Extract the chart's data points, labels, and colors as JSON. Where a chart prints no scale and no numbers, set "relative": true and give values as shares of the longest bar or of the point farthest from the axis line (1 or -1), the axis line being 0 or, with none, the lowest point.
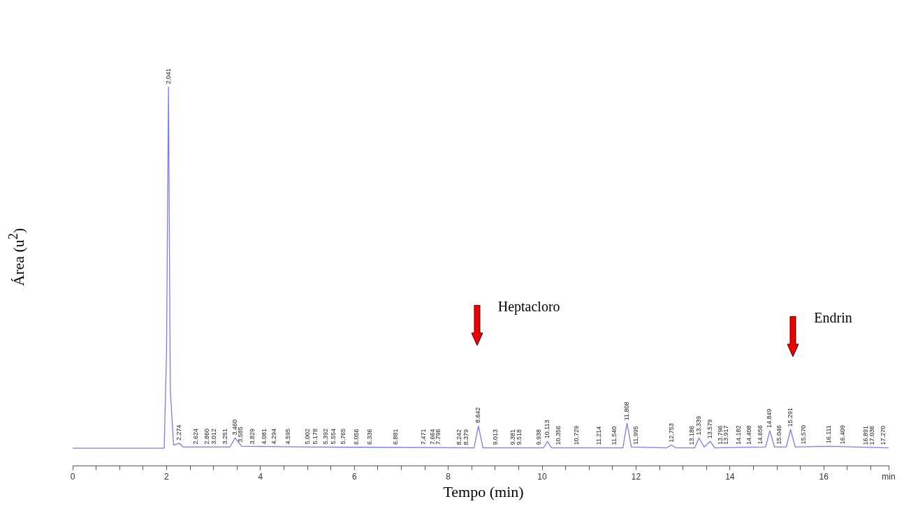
{
  "chart_data": {
    "type": "line",
    "relative": true,
    "xlabel": "Tempo (min)",
    "ylabel": "Área (u$^{2}$)",
    "xlim": [
      0,
      17.38
    ],
    "xticks": [
      0,
      {
        "value": 0.5,
        "label": null
      },
      {
        "value": 1,
        "label": null
      },
      {
        "value": 1.5,
        "label": null
      },
      2,
      {
        "value": 2.5,
        "label": null
      },
      {
        "value": 3,
        "label": null
      },
      {
        "value": 3.5,
        "label": null
      },
      4,
      {
        "value": 4.5,
        "label": null
      },
      {
        "value": 5,
        "label": null
      },
      {
        "value": 5.5,
        "label": null
      },
      6,
      {
        "value": 6.5,
        "label": null
      },
      {
        "value": 7,
        "label": null
      },
      {
        "value": 7.5,
        "label": null
      },
      8,
      {
        "value": 8.5,
        "label": null
      },
      {
        "value": 9,
        "label": null
      },
      {
        "value": 9.5,
        "label": null
      },
      10,
      {
        "value": 10.5,
        "label": null
      },
      {
        "value": 11,
        "label": null
      },
      {
        "value": 11.5,
        "label": null
      },
      12,
      {
        "value": 12.5,
        "label": null
      },
      {
        "value": 13,
        "label": null
      },
      {
        "value": 13.5,
        "label": null
      },
      14,
      {
        "value": 14.5,
        "label": null
      },
      {
        "value": 15,
        "label": null
      },
      {
        "value": 15.5,
        "label": null
      },
      16,
      {
        "value": 16.5,
        "label": null
      },
      {
        "value": 17,
        "label": null
      },
      {
        "value": 17.38,
        "label": "min"
      }
    ],
    "legend": false,
    "grid": false,
    "marker": "none",
    "series": [
      {
        "color": "#7b7bf0",
        "x": [
          0,
          1.95,
          2.0,
          2.041,
          2.08,
          2.15,
          2.274,
          2.35,
          3.35,
          3.46,
          3.6,
          5.0,
          8.55,
          8.642,
          8.74,
          10.03,
          10.113,
          10.2,
          11.72,
          11.808,
          11.9,
          12.65,
          12.753,
          12.85,
          13.25,
          13.339,
          13.45,
          13.579,
          13.68,
          14.76,
          14.849,
          14.95,
          15.2,
          15.291,
          15.39,
          16.111,
          17.38
        ],
        "values": [
          0.047,
          0.047,
          0.3,
          1.0,
          0.2,
          0.055,
          0.06,
          0.05,
          0.05,
          0.074,
          0.052,
          0.05,
          0.048,
          0.106,
          0.048,
          0.048,
          0.065,
          0.048,
          0.048,
          0.113,
          0.05,
          0.048,
          0.055,
          0.048,
          0.048,
          0.074,
          0.05,
          0.065,
          0.048,
          0.05,
          0.093,
          0.05,
          0.05,
          0.096,
          0.05,
          0.052,
          0.048
        ]
      }
    ],
    "annotations": [
      "Heptacloro",
      "Endrin",
      {
        "text": "2.041",
        "x": 2.041,
        "y": 1.0
      },
      {
        "text": "2.274",
        "x": 2.274,
        "y": 0.06
      },
      {
        "text": "2.624",
        "x": 2.624,
        "y": 0.05
      },
      {
        "text": "2.860",
        "x": 2.86,
        "y": 0.05
      },
      {
        "text": "3.012",
        "x": 3.012,
        "y": 0.05
      },
      {
        "text": "3.251",
        "x": 3.251,
        "y": 0.05
      },
      {
        "text": "3.460",
        "x": 3.46,
        "y": 0.074
      },
      {
        "text": "3.585",
        "x": 3.585,
        "y": 0.055
      },
      {
        "text": "3.829",
        "x": 3.829,
        "y": 0.05
      },
      {
        "text": "4.081",
        "x": 4.081,
        "y": 0.05
      },
      {
        "text": "4.294",
        "x": 4.294,
        "y": 0.05
      },
      {
        "text": "4.595",
        "x": 4.595,
        "y": 0.05
      },
      {
        "text": "5.002",
        "x": 5.002,
        "y": 0.05
      },
      {
        "text": "5.178",
        "x": 5.178,
        "y": 0.05
      },
      {
        "text": "5.392",
        "x": 5.392,
        "y": 0.05
      },
      {
        "text": "5.554",
        "x": 5.554,
        "y": 0.05
      },
      {
        "text": "5.765",
        "x": 5.765,
        "y": 0.05
      },
      {
        "text": "6.056",
        "x": 6.056,
        "y": 0.049
      },
      {
        "text": "6.336",
        "x": 6.336,
        "y": 0.049
      },
      {
        "text": "6.881",
        "x": 6.881,
        "y": 0.049
      },
      {
        "text": "7.471",
        "x": 7.471,
        "y": 0.049
      },
      {
        "text": "7.664",
        "x": 7.664,
        "y": 0.049
      },
      {
        "text": "7.796",
        "x": 7.796,
        "y": 0.049
      },
      {
        "text": "8.242",
        "x": 8.242,
        "y": 0.048
      },
      {
        "text": "8.379",
        "x": 8.379,
        "y": 0.048
      },
      {
        "text": "8.642",
        "x": 8.642,
        "y": 0.106
      },
      {
        "text": "9.013",
        "x": 9.013,
        "y": 0.048
      },
      {
        "text": "9.381",
        "x": 9.381,
        "y": 0.048
      },
      {
        "text": "9.518",
        "x": 9.518,
        "y": 0.048
      },
      {
        "text": "9.938",
        "x": 9.938,
        "y": 0.048
      },
      {
        "text": "10.113",
        "x": 10.113,
        "y": 0.065
      },
      {
        "text": "10.356",
        "x": 10.356,
        "y": 0.048
      },
      {
        "text": "10.729",
        "x": 10.729,
        "y": 0.048
      },
      {
        "text": "11.214",
        "x": 11.214,
        "y": 0.048
      },
      {
        "text": "11.540",
        "x": 11.54,
        "y": 0.048
      },
      {
        "text": "11.808",
        "x": 11.808,
        "y": 0.113
      },
      {
        "text": "11.995",
        "x": 11.995,
        "y": 0.049
      },
      {
        "text": "12.753",
        "x": 12.753,
        "y": 0.055
      },
      {
        "text": "13.186",
        "x": 13.186,
        "y": 0.048
      },
      {
        "text": "13.339",
        "x": 13.339,
        "y": 0.074
      },
      {
        "text": "13.579",
        "x": 13.579,
        "y": 0.065
      },
      {
        "text": "13.796",
        "x": 13.796,
        "y": 0.049
      },
      {
        "text": "13.917",
        "x": 13.917,
        "y": 0.049
      },
      {
        "text": "14.182",
        "x": 14.182,
        "y": 0.049
      },
      {
        "text": "14.408",
        "x": 14.408,
        "y": 0.049
      },
      {
        "text": "14.656",
        "x": 14.656,
        "y": 0.05
      },
      {
        "text": "14.849",
        "x": 14.849,
        "y": 0.093
      },
      {
        "text": "15.046",
        "x": 15.046,
        "y": 0.05
      },
      {
        "text": "15.291",
        "x": 15.291,
        "y": 0.096
      },
      {
        "text": "15.570",
        "x": 15.57,
        "y": 0.05
      },
      {
        "text": "16.111",
        "x": 16.111,
        "y": 0.052
      },
      {
        "text": "16.409",
        "x": 16.409,
        "y": 0.05
      },
      {
        "text": "16.891",
        "x": 16.891,
        "y": 0.048
      },
      {
        "text": "17.036",
        "x": 17.036,
        "y": 0.048
      },
      {
        "text": "17.270",
        "x": 17.27,
        "y": 0.048
      }
    ]
  }
}
